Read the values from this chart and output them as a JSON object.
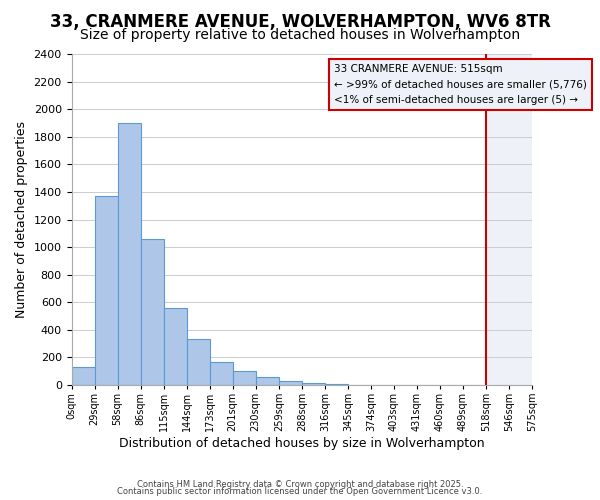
{
  "title": "33, CRANMERE AVENUE, WOLVERHAMPTON, WV6 8TR",
  "subtitle": "Size of property relative to detached houses in Wolverhampton",
  "xlabel": "Distribution of detached houses by size in Wolverhampton",
  "ylabel": "Number of detached properties",
  "bin_labels": [
    "0sqm",
    "29sqm",
    "58sqm",
    "86sqm",
    "115sqm",
    "144sqm",
    "173sqm",
    "201sqm",
    "230sqm",
    "259sqm",
    "288sqm",
    "316sqm",
    "345sqm",
    "374sqm",
    "403sqm",
    "431sqm",
    "460sqm",
    "489sqm",
    "518sqm",
    "546sqm",
    "575sqm"
  ],
  "bar_heights": [
    130,
    1370,
    1900,
    1060,
    560,
    335,
    165,
    105,
    55,
    30,
    15,
    5,
    0,
    0,
    0,
    0,
    0,
    0,
    0,
    0
  ],
  "bar_color": "#aec6e8",
  "bar_edge_color": "#5b9bd5",
  "grid_color": "#cccccc",
  "vline_x": 18,
  "vline_color": "#cc0000",
  "highlight_fill": "#eef2f8",
  "highlight_edge": "#cc0000",
  "annotation_title": "33 CRANMERE AVENUE: 515sqm",
  "annotation_line1": "← >99% of detached houses are smaller (5,776)",
  "annotation_line2": "<1% of semi-detached houses are larger (5) →",
  "footer1": "Contains HM Land Registry data © Crown copyright and database right 2025.",
  "footer2": "Contains public sector information licensed under the Open Government Licence v3.0.",
  "ylim": [
    0,
    2400
  ],
  "yticks": [
    0,
    200,
    400,
    600,
    800,
    1000,
    1200,
    1400,
    1600,
    1800,
    2000,
    2200,
    2400
  ],
  "background_color": "#ffffff",
  "title_fontsize": 12,
  "subtitle_fontsize": 10
}
